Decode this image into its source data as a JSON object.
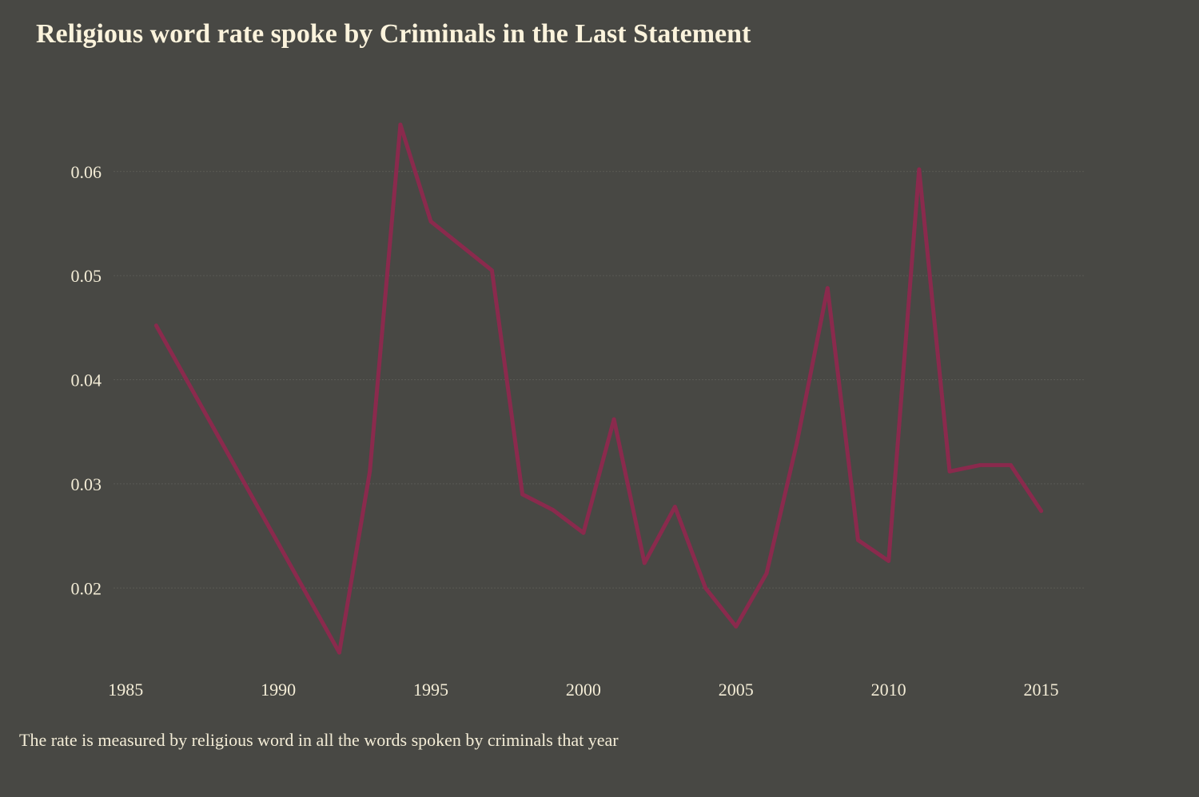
{
  "chart_data": {
    "type": "line",
    "title": "Religious word rate spoke by Criminals in the Last Statement",
    "caption": "The rate is measured by religious word in all the words spoken by criminals that year",
    "xlabel": "",
    "ylabel": "",
    "xlim": [
      1984.6,
      2016.4
    ],
    "ylim": [
      0.0122,
      0.0665
    ],
    "x_ticks": [
      1985,
      1990,
      1995,
      2000,
      2005,
      2010,
      2015
    ],
    "y_ticks": [
      0.02,
      0.03,
      0.04,
      0.05,
      0.06
    ],
    "y_tick_labels": [
      "0.02",
      "0.03",
      "0.04",
      "0.05",
      "0.06"
    ],
    "grid": "horizontal",
    "line_color": "#8a2a4d",
    "background_color": "#484844",
    "series": [
      {
        "x": [
          1986,
          1992,
          1993,
          1994,
          1995,
          1997,
          1998,
          1999,
          2000,
          2001,
          2002,
          2003,
          2004,
          2005,
          2006,
          2007,
          2008,
          2009,
          2010,
          2011,
          2012,
          2013,
          2014,
          2015
        ],
        "values": [
          0.0452,
          0.0138,
          0.0312,
          0.0645,
          0.0552,
          0.0505,
          0.029,
          0.0275,
          0.0253,
          0.0362,
          0.0224,
          0.0278,
          0.02,
          0.0163,
          0.0214,
          0.034,
          0.0488,
          0.0246,
          0.0226,
          0.0602,
          0.0312,
          0.0318,
          0.0318,
          0.0274
        ]
      }
    ]
  }
}
